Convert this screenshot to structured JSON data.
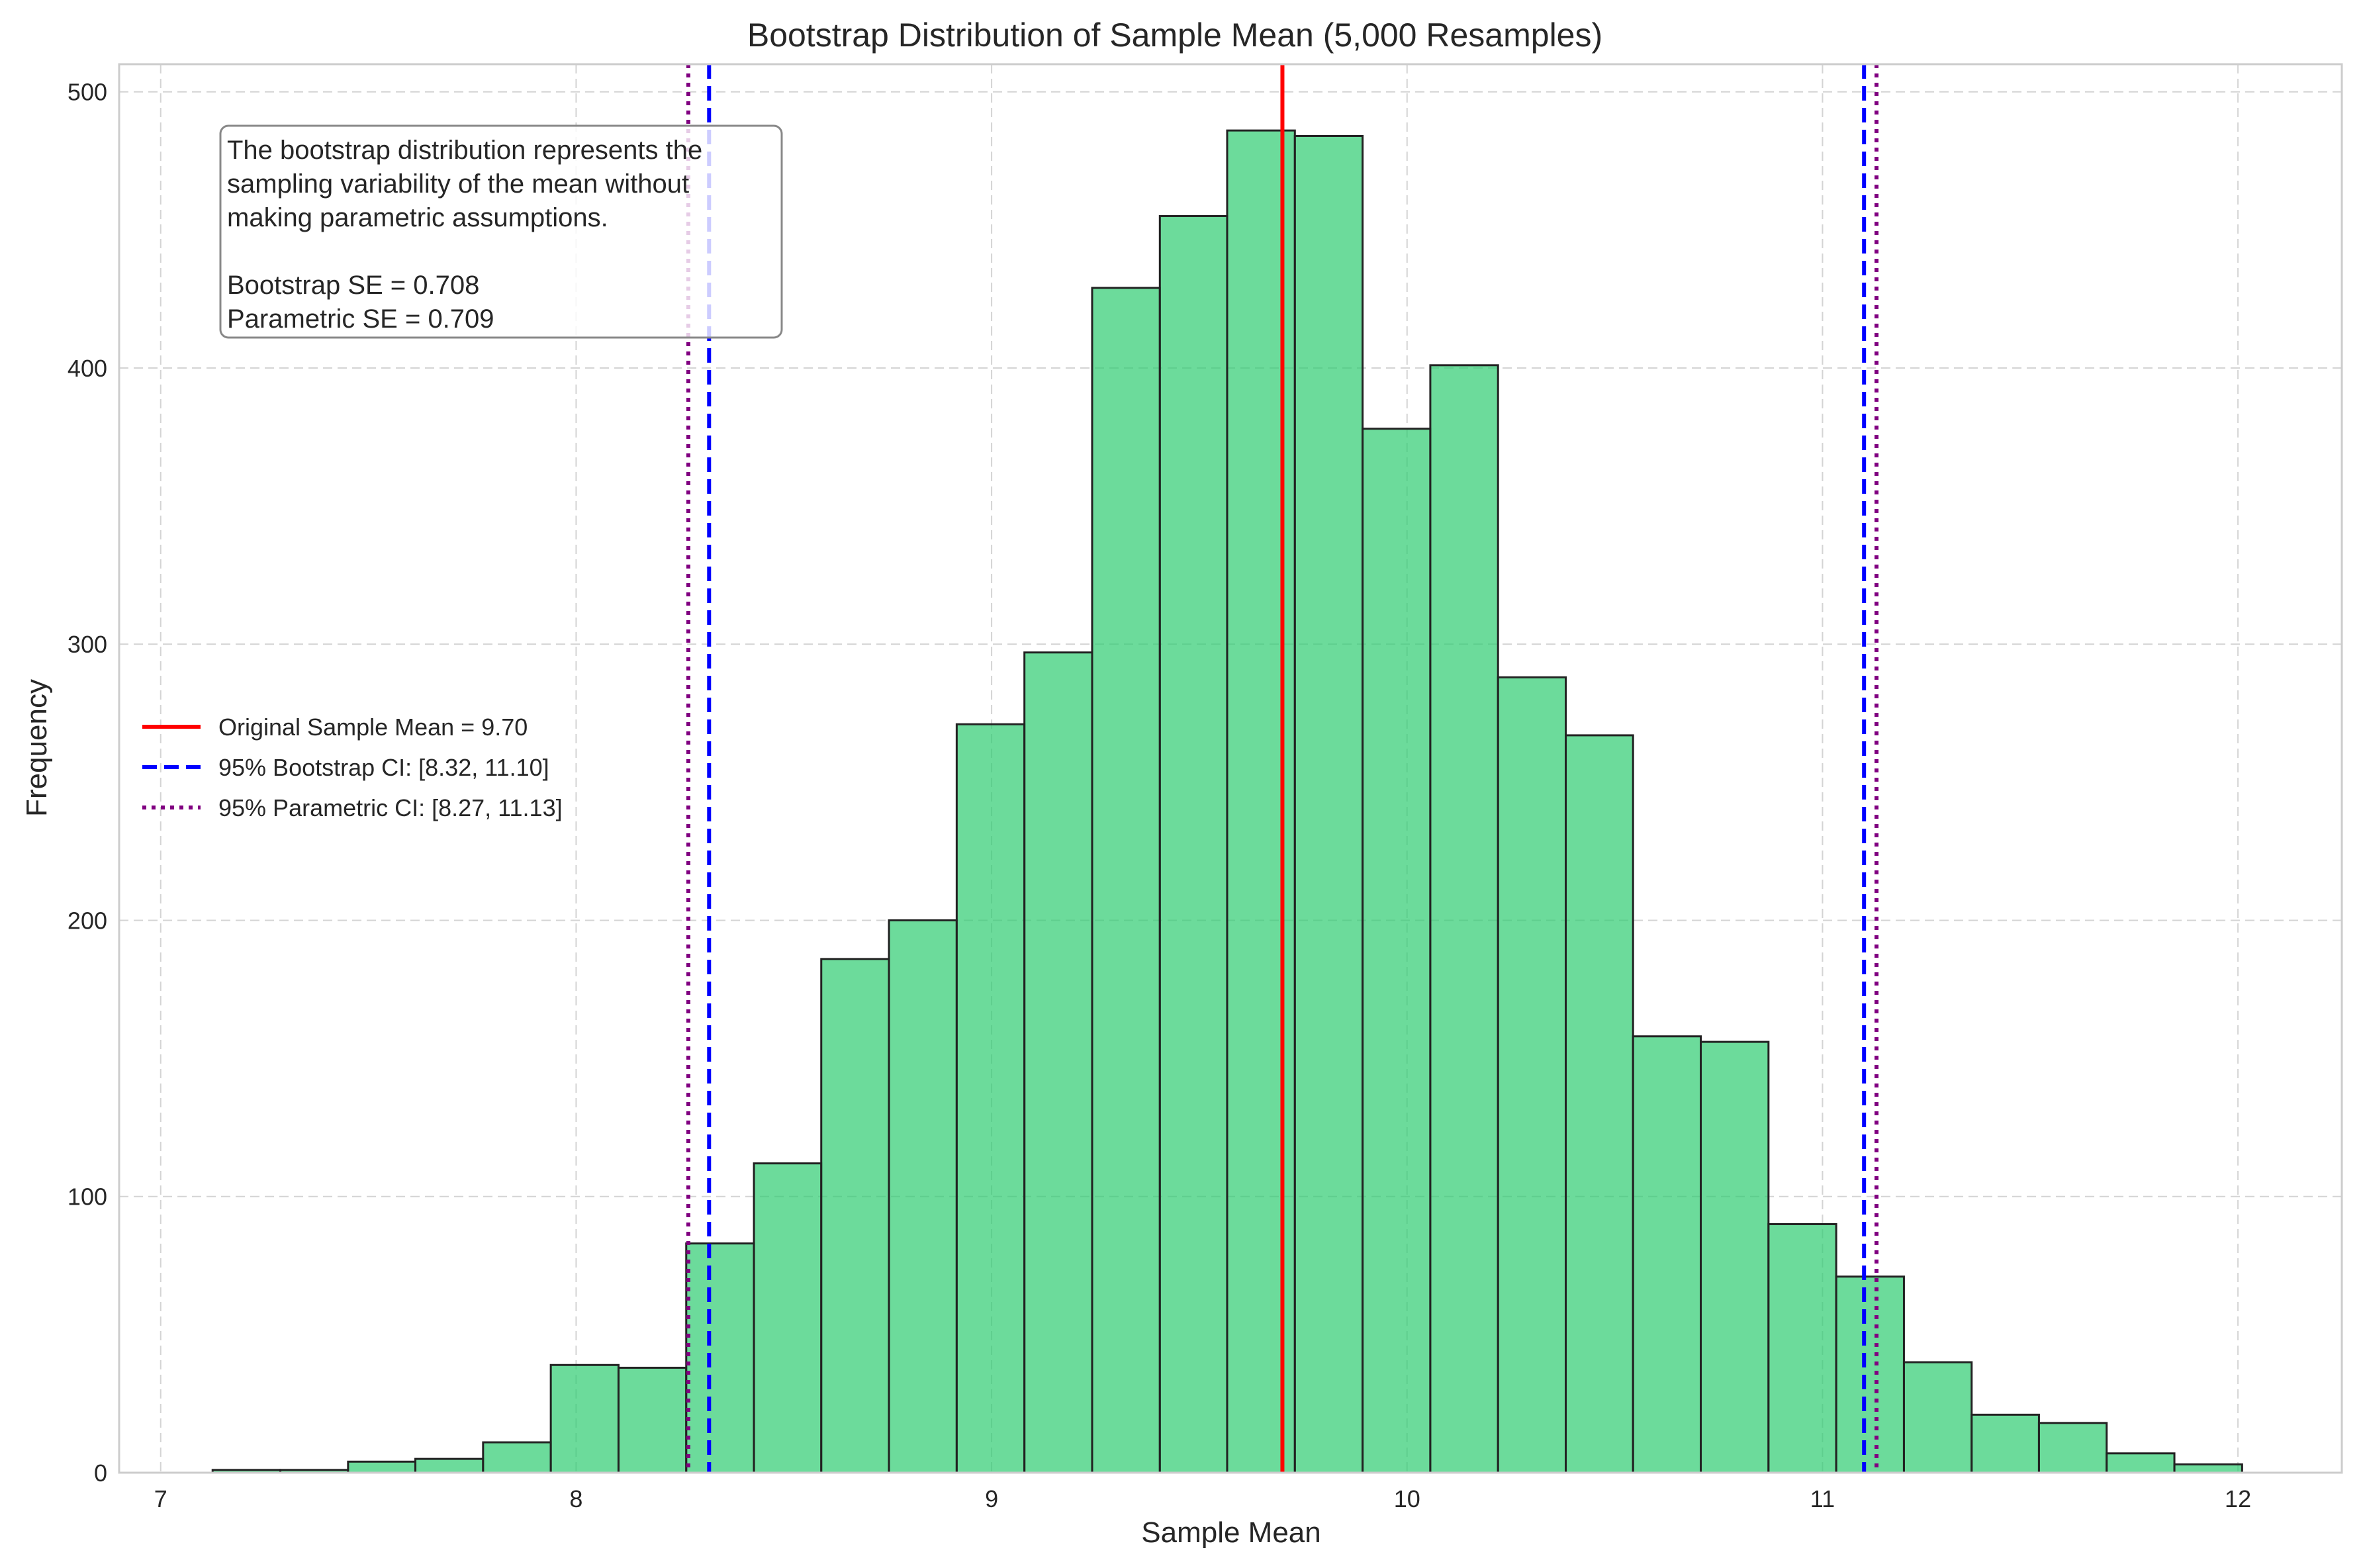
{
  "chart_data": {
    "type": "bar",
    "title": "Bootstrap Distribution of Sample Mean (5,000 Resamples)",
    "xlabel": "Sample Mean",
    "ylabel": "Frequency",
    "xlim": [
      6.9,
      12.25
    ],
    "ylim": [
      0,
      510
    ],
    "xticks": [
      7,
      8,
      9,
      10,
      11,
      12
    ],
    "yticks": [
      0,
      100,
      200,
      300,
      400,
      500
    ],
    "grid": true,
    "bar_color": "#2ecc71",
    "bin_width": 0.1628,
    "bin_edges_start": 7.125,
    "bins": [
      {
        "x0": 7.125,
        "x1": 7.288,
        "count": 1
      },
      {
        "x0": 7.288,
        "x1": 7.451,
        "count": 1
      },
      {
        "x0": 7.451,
        "x1": 7.613,
        "count": 4
      },
      {
        "x0": 7.613,
        "x1": 7.776,
        "count": 5
      },
      {
        "x0": 7.776,
        "x1": 7.939,
        "count": 11
      },
      {
        "x0": 7.939,
        "x1": 8.102,
        "count": 39
      },
      {
        "x0": 8.102,
        "x1": 8.265,
        "count": 38
      },
      {
        "x0": 8.265,
        "x1": 8.428,
        "count": 83
      },
      {
        "x0": 8.428,
        "x1": 8.59,
        "count": 112
      },
      {
        "x0": 8.59,
        "x1": 8.753,
        "count": 186
      },
      {
        "x0": 8.753,
        "x1": 8.916,
        "count": 200
      },
      {
        "x0": 8.916,
        "x1": 9.079,
        "count": 271
      },
      {
        "x0": 9.079,
        "x1": 9.242,
        "count": 297
      },
      {
        "x0": 9.242,
        "x1": 9.405,
        "count": 429
      },
      {
        "x0": 9.405,
        "x1": 9.567,
        "count": 455
      },
      {
        "x0": 9.567,
        "x1": 9.73,
        "count": 486
      },
      {
        "x0": 9.73,
        "x1": 9.893,
        "count": 484
      },
      {
        "x0": 9.893,
        "x1": 10.056,
        "count": 378
      },
      {
        "x0": 10.056,
        "x1": 10.219,
        "count": 401
      },
      {
        "x0": 10.219,
        "x1": 10.382,
        "count": 288
      },
      {
        "x0": 10.382,
        "x1": 10.544,
        "count": 267
      },
      {
        "x0": 10.544,
        "x1": 10.707,
        "count": 158
      },
      {
        "x0": 10.707,
        "x1": 10.87,
        "count": 156
      },
      {
        "x0": 10.87,
        "x1": 11.033,
        "count": 90
      },
      {
        "x0": 11.033,
        "x1": 11.196,
        "count": 71
      },
      {
        "x0": 11.196,
        "x1": 11.359,
        "count": 40
      },
      {
        "x0": 11.359,
        "x1": 11.521,
        "count": 21
      },
      {
        "x0": 11.521,
        "x1": 11.684,
        "count": 18
      },
      {
        "x0": 11.684,
        "x1": 11.847,
        "count": 7
      },
      {
        "x0": 11.847,
        "x1": 12.01,
        "count": 3
      }
    ],
    "vlines": [
      {
        "x": 9.7,
        "color": "#ff0000",
        "style": "solid",
        "legend_index": 0
      },
      {
        "x": 8.32,
        "color": "#0000ff",
        "style": "dashed",
        "legend_index": 1
      },
      {
        "x": 11.1,
        "color": "#0000ff",
        "style": "dashed",
        "legend_index": 1
      },
      {
        "x": 8.27,
        "color": "#800080",
        "style": "dotted",
        "legend_index": 2
      },
      {
        "x": 11.13,
        "color": "#800080",
        "style": "dotted",
        "legend_index": 2
      }
    ],
    "legend": {
      "placement": "center-left",
      "entries": [
        {
          "label": "Original Sample Mean = 9.70",
          "color": "#ff0000",
          "style": "solid"
        },
        {
          "label": "95% Bootstrap CI: [8.32, 11.10]",
          "color": "#0000ff",
          "style": "dashed"
        },
        {
          "label": "95% Parametric CI: [8.27, 11.13]",
          "color": "#800080",
          "style": "dotted"
        }
      ]
    },
    "annotation": {
      "placement": "top-left",
      "lines": [
        "The bootstrap distribution represents the",
        "sampling variability of the mean without",
        "making parametric assumptions.",
        "",
        "Bootstrap SE = 0.708",
        "Parametric SE = 0.709"
      ]
    }
  }
}
